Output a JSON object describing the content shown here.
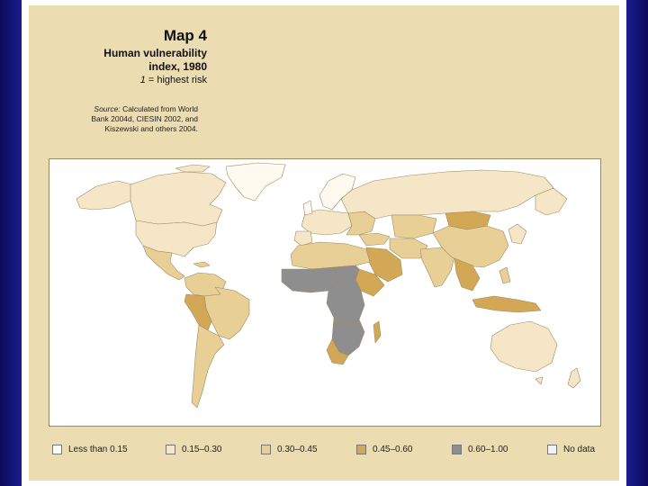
{
  "map": {
    "title": "Map 4",
    "subtitle_line1": "Human vulnerability",
    "subtitle_line2": "index, 1980",
    "risk_note_value": "1",
    "risk_note_text": " = highest risk",
    "source_label": "Source:",
    "source_line1": " Calculated from World",
    "source_line2": "Bank 2004d, CIESIN 2002, and",
    "source_line3": "Kiszewski and others 2004."
  },
  "legend": {
    "items": [
      {
        "label": "Less than 0.15",
        "color": "#fffaf0"
      },
      {
        "label": "0.15–0.30",
        "color": "#f5e6c8"
      },
      {
        "label": "0.30–0.45",
        "color": "#e8cf96"
      },
      {
        "label": "0.45–0.60",
        "color": "#d2a857"
      },
      {
        "label": "0.60–1.00",
        "color": "#8e8e8e"
      },
      {
        "label": "No data",
        "color": "#f2f2f2"
      }
    ]
  },
  "colors": {
    "panel": "#ecdcb2",
    "slide_background": "#1a1a8c",
    "ocean": "#ffffff",
    "border": "#9a8a66"
  }
}
